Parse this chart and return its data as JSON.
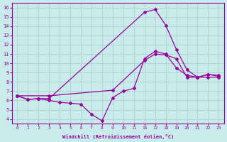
{
  "xlabel": "Windchill (Refroidissement éolien,°C)",
  "bg_color": "#c8ecec",
  "line_color": "#990099",
  "grid_color": "#aacccc",
  "ylim": [
    3.5,
    16.5
  ],
  "yticks": [
    4,
    5,
    6,
    7,
    8,
    9,
    10,
    11,
    12,
    13,
    14,
    15,
    16
  ],
  "x_labels": [
    "0",
    "1",
    "2",
    "3",
    "4",
    "5",
    "6",
    "7",
    "8",
    "9",
    "10",
    "11",
    "16",
    "17",
    "18",
    "19",
    "20",
    "21",
    "22",
    "23"
  ],
  "line1_xi": [
    0,
    1,
    2,
    3,
    4,
    5,
    6,
    7,
    8,
    9,
    10,
    11,
    12,
    13,
    14,
    15,
    16,
    17,
    18,
    19
  ],
  "line1_y": [
    6.5,
    6.1,
    6.2,
    6.0,
    5.8,
    5.7,
    5.6,
    4.5,
    3.8,
    6.3,
    7.0,
    7.3,
    10.5,
    11.3,
    11.0,
    9.5,
    8.7,
    8.5,
    8.8,
    8.7
  ],
  "line2_xi": [
    0,
    1,
    2,
    3,
    12,
    13,
    14,
    15,
    16,
    17,
    18,
    19
  ],
  "line2_y": [
    6.5,
    6.1,
    6.2,
    6.2,
    15.5,
    15.8,
    14.1,
    11.5,
    9.3,
    8.5,
    8.8,
    8.6
  ],
  "line3_xi": [
    0,
    3,
    9,
    12,
    13,
    14,
    15,
    16,
    17,
    18,
    19
  ],
  "line3_y": [
    6.5,
    6.5,
    7.1,
    10.3,
    11.0,
    10.9,
    10.5,
    8.5,
    8.5,
    8.5,
    8.5
  ]
}
